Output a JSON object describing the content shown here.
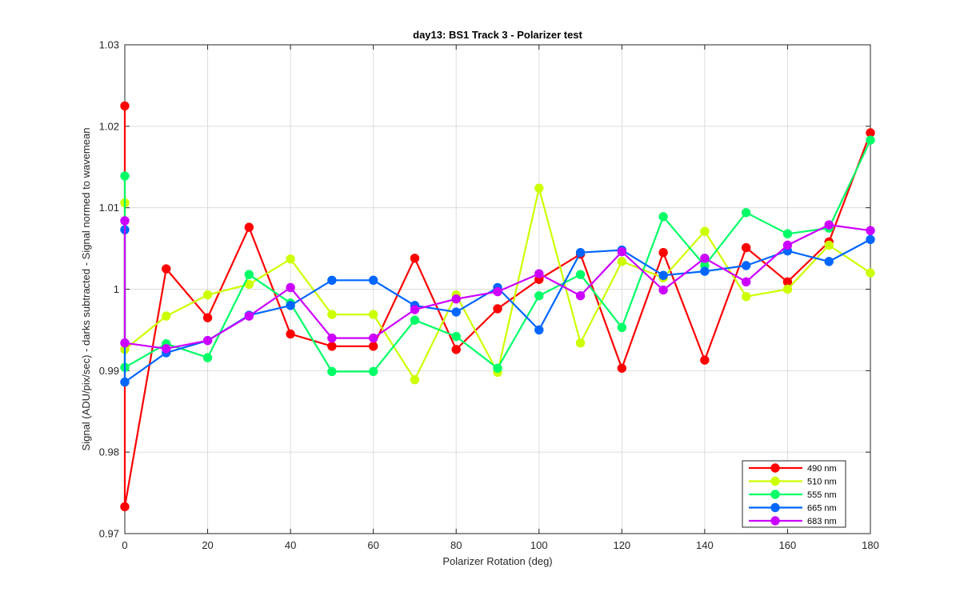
{
  "chart_data": {
    "type": "line",
    "title": "day13: BS1  Track 3 - Polarizer test",
    "xlabel": "Polarizer Rotation (deg)",
    "ylabel": "Signal (ADU/pix/sec) - darks subtracted - Signal normed to wavemean",
    "xlim": [
      0,
      180
    ],
    "ylim": [
      0.97,
      1.03
    ],
    "xticks": [
      0,
      20,
      40,
      60,
      80,
      100,
      120,
      140,
      160,
      180
    ],
    "yticks": [
      0.97,
      0.98,
      0.99,
      1.0,
      1.01,
      1.02,
      1.03
    ],
    "xtick_labels": [
      "0",
      "20",
      "40",
      "60",
      "80",
      "100",
      "120",
      "140",
      "160",
      "180"
    ],
    "ytick_labels": [
      "0.97",
      "0.98",
      "0.99",
      "1",
      "1.01",
      "1.02",
      "1.03"
    ],
    "grid": true,
    "legend_position": "bottom-right",
    "series": [
      {
        "name": "490 nm",
        "color": "#ff0000",
        "points": [
          [
            0,
            1.0225
          ],
          [
            0,
            0.9733
          ],
          [
            10,
            1.0025
          ],
          [
            20,
            0.9965
          ],
          [
            30,
            1.0076
          ],
          [
            40,
            0.9945
          ],
          [
            50,
            0.993
          ],
          [
            60,
            0.993
          ],
          [
            70,
            1.0038
          ],
          [
            80,
            0.9926
          ],
          [
            90,
            0.9976
          ],
          [
            100,
            1.0012
          ],
          [
            110,
            1.0043
          ],
          [
            120,
            0.9903
          ],
          [
            130,
            1.0045
          ],
          [
            140,
            0.9913
          ],
          [
            150,
            1.0051
          ],
          [
            160,
            1.0009
          ],
          [
            170,
            1.0058
          ],
          [
            180,
            1.0192
          ]
        ]
      },
      {
        "name": "510 nm",
        "color": "#ccff00",
        "points": [
          [
            0,
            1.0106
          ],
          [
            0,
            0.9926
          ],
          [
            10,
            0.9967
          ],
          [
            20,
            0.9993
          ],
          [
            30,
            1.0006
          ],
          [
            40,
            1.0037
          ],
          [
            50,
            0.9969
          ],
          [
            60,
            0.9969
          ],
          [
            70,
            0.9889
          ],
          [
            80,
            0.9993
          ],
          [
            90,
            0.9898
          ],
          [
            100,
            1.0124
          ],
          [
            110,
            0.9934
          ],
          [
            120,
            1.0034
          ],
          [
            130,
            1.0014
          ],
          [
            140,
            1.0071
          ],
          [
            150,
            0.9991
          ],
          [
            160,
            1.0
          ],
          [
            170,
            1.0054
          ],
          [
            180,
            1.002
          ]
        ]
      },
      {
        "name": "555 nm",
        "color": "#00ff66",
        "points": [
          [
            0,
            1.0139
          ],
          [
            0,
            0.9904
          ],
          [
            10,
            0.9933
          ],
          [
            20,
            0.9916
          ],
          [
            30,
            1.0018
          ],
          [
            40,
            0.9983
          ],
          [
            50,
            0.9899
          ],
          [
            60,
            0.9899
          ],
          [
            70,
            0.9962
          ],
          [
            80,
            0.9942
          ],
          [
            90,
            0.9903
          ],
          [
            100,
            0.9992
          ],
          [
            110,
            1.0018
          ],
          [
            120,
            0.9953
          ],
          [
            130,
            1.0089
          ],
          [
            140,
            1.0029
          ],
          [
            150,
            1.0094
          ],
          [
            160,
            1.0068
          ],
          [
            170,
            1.0075
          ],
          [
            180,
            1.0183
          ]
        ]
      },
      {
        "name": "665 nm",
        "color": "#0066ff",
        "points": [
          [
            0,
            1.0073
          ],
          [
            0,
            0.9886
          ],
          [
            10,
            0.9922
          ],
          [
            20,
            0.9937
          ],
          [
            30,
            0.9968
          ],
          [
            40,
            0.998
          ],
          [
            50,
            1.0011
          ],
          [
            60,
            1.0011
          ],
          [
            70,
            0.998
          ],
          [
            80,
            0.9972
          ],
          [
            90,
            1.0002
          ],
          [
            100,
            0.995
          ],
          [
            110,
            1.0045
          ],
          [
            120,
            1.0048
          ],
          [
            130,
            1.0017
          ],
          [
            140,
            1.0022
          ],
          [
            150,
            1.0029
          ],
          [
            160,
            1.0047
          ],
          [
            170,
            1.0034
          ],
          [
            180,
            1.0061
          ]
        ]
      },
      {
        "name": "683 nm",
        "color": "#cc00ff",
        "points": [
          [
            0,
            1.0084
          ],
          [
            0,
            0.9934
          ],
          [
            10,
            0.9927
          ],
          [
            20,
            0.9937
          ],
          [
            30,
            0.9967
          ],
          [
            40,
            1.0002
          ],
          [
            50,
            0.994
          ],
          [
            60,
            0.994
          ],
          [
            70,
            0.9975
          ],
          [
            80,
            0.9988
          ],
          [
            90,
            0.9997
          ],
          [
            100,
            1.0019
          ],
          [
            110,
            0.9992
          ],
          [
            120,
            1.0046
          ],
          [
            130,
            0.9999
          ],
          [
            140,
            1.0038
          ],
          [
            150,
            1.0009
          ],
          [
            160,
            1.0054
          ],
          [
            170,
            1.0079
          ],
          [
            180,
            1.0072
          ]
        ]
      }
    ]
  }
}
